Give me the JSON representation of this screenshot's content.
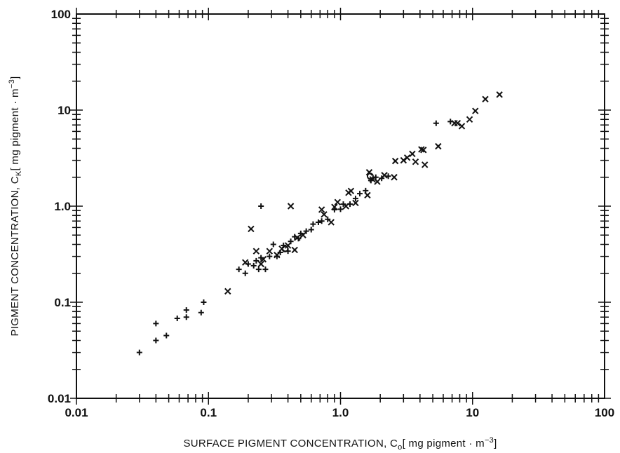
{
  "chart_data": {
    "type": "scatter",
    "title": "",
    "xscale": "log",
    "yscale": "log",
    "xlim": [
      0.01,
      100
    ],
    "ylim": [
      0.01,
      100
    ],
    "xtick_labels": [
      "0.01",
      "0.1",
      "1.0",
      "10",
      "100"
    ],
    "ytick_labels": [
      "0.01",
      "0.1",
      "1.0",
      "10",
      "100"
    ],
    "xlabel": {
      "pre": "SURFACE PIGMENT CONCENTRATION, C",
      "sub": "o",
      "mid": "[ mg pigment · m",
      "sup": "−3",
      "post": "]"
    },
    "ylabel": {
      "pre": "PIGMENT CONCENTRATION, C",
      "sub": "K",
      "mid": "[ mg pigment · m",
      "sup": "−3",
      "post": "]"
    },
    "grid": false,
    "legend": "none",
    "series": [
      {
        "marker": "plus",
        "points": [
          [
            0.03,
            0.03
          ],
          [
            0.04,
            0.04
          ],
          [
            0.04,
            0.06
          ],
          [
            0.048,
            0.045
          ],
          [
            0.058,
            0.068
          ],
          [
            0.068,
            0.07
          ],
          [
            0.068,
            0.083
          ],
          [
            0.088,
            0.078
          ],
          [
            0.092,
            0.1
          ],
          [
            0.17,
            0.22
          ],
          [
            0.19,
            0.2
          ],
          [
            0.2,
            0.25
          ],
          [
            0.22,
            0.24
          ],
          [
            0.23,
            0.27
          ],
          [
            0.24,
            0.22
          ],
          [
            0.25,
            0.29
          ],
          [
            0.25,
            1.0
          ],
          [
            0.27,
            0.22
          ],
          [
            0.29,
            0.3
          ],
          [
            0.31,
            0.4
          ],
          [
            0.33,
            0.3
          ],
          [
            0.35,
            0.33
          ],
          [
            0.37,
            0.39
          ],
          [
            0.4,
            0.34
          ],
          [
            0.42,
            0.43
          ],
          [
            0.45,
            0.48
          ],
          [
            0.48,
            0.46
          ],
          [
            0.5,
            0.52
          ],
          [
            0.55,
            0.55
          ],
          [
            0.6,
            0.57
          ],
          [
            0.62,
            0.65
          ],
          [
            0.68,
            0.68
          ],
          [
            0.72,
            0.7
          ],
          [
            0.8,
            0.73
          ],
          [
            0.9,
            0.92
          ],
          [
            1.0,
            0.93
          ],
          [
            1.05,
            1.05
          ],
          [
            1.18,
            1.05
          ],
          [
            1.3,
            1.2
          ],
          [
            1.4,
            1.35
          ],
          [
            1.55,
            1.45
          ],
          [
            1.7,
            1.85
          ],
          [
            1.85,
            2.0
          ],
          [
            2.05,
            1.95
          ],
          [
            2.3,
            2.05
          ],
          [
            5.3,
            7.3
          ],
          [
            6.8,
            7.6
          ]
        ]
      },
      {
        "marker": "cross",
        "points": [
          [
            0.14,
            0.13
          ],
          [
            0.19,
            0.26
          ],
          [
            0.21,
            0.58
          ],
          [
            0.23,
            0.34
          ],
          [
            0.25,
            0.25
          ],
          [
            0.26,
            0.28
          ],
          [
            0.29,
            0.34
          ],
          [
            0.33,
            0.31
          ],
          [
            0.36,
            0.36
          ],
          [
            0.4,
            0.39
          ],
          [
            0.42,
            1.0
          ],
          [
            0.45,
            0.35
          ],
          [
            0.47,
            0.47
          ],
          [
            0.52,
            0.5
          ],
          [
            0.72,
            0.92
          ],
          [
            0.75,
            0.82
          ],
          [
            0.85,
            0.68
          ],
          [
            0.9,
            0.98
          ],
          [
            0.95,
            1.1
          ],
          [
            1.1,
            1.0
          ],
          [
            1.15,
            1.38
          ],
          [
            1.2,
            1.44
          ],
          [
            1.3,
            1.08
          ],
          [
            1.6,
            1.3
          ],
          [
            1.65,
            2.25
          ],
          [
            1.75,
            1.9
          ],
          [
            1.9,
            1.8
          ],
          [
            2.15,
            2.1
          ],
          [
            2.55,
            2.0
          ],
          [
            2.6,
            2.95
          ],
          [
            3.0,
            3.0
          ],
          [
            3.2,
            3.2
          ],
          [
            3.5,
            3.5
          ],
          [
            3.7,
            2.9
          ],
          [
            4.1,
            3.9
          ],
          [
            4.25,
            3.85
          ],
          [
            4.35,
            2.7
          ],
          [
            5.5,
            4.2
          ],
          [
            7.3,
            7.3
          ],
          [
            7.7,
            7.3
          ],
          [
            8.3,
            6.8
          ],
          [
            9.5,
            8.0
          ],
          [
            10.5,
            9.8
          ],
          [
            12.5,
            13.0
          ],
          [
            16.0,
            14.5
          ]
        ]
      },
      {
        "marker": "circle",
        "points": [
          [
            0.38,
            0.36
          ],
          [
            1.68,
            2.05
          ]
        ]
      }
    ]
  }
}
